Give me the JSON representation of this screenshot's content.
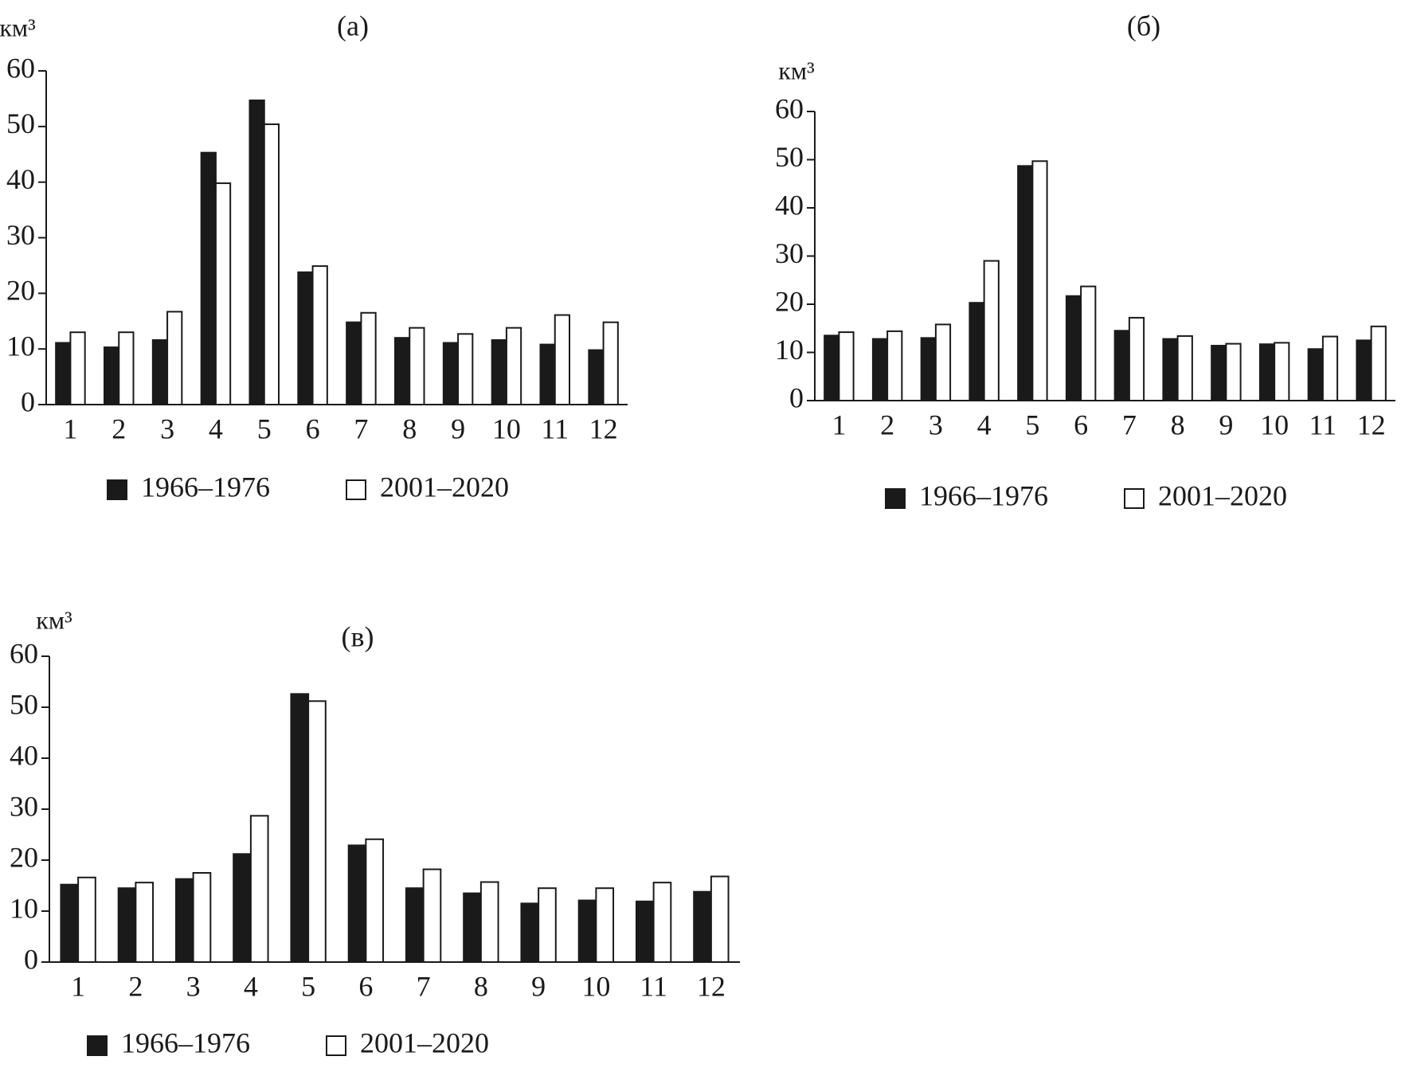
{
  "chart_data": [
    {
      "type": "bar",
      "title": "(а)",
      "y_label": "км³",
      "categories": [
        "1",
        "2",
        "3",
        "4",
        "5",
        "6",
        "7",
        "8",
        "9",
        "10",
        "11",
        "12"
      ],
      "series": [
        {
          "name": "1966–1976",
          "color": "#1a1a1a",
          "values": [
            11.1,
            10.3,
            11.6,
            45.3,
            54.7,
            23.8,
            14.8,
            12.0,
            11.1,
            11.6,
            10.8,
            9.8
          ]
        },
        {
          "name": "2001–2020",
          "color": "#ffffff",
          "values": [
            13.0,
            13.0,
            16.7,
            39.8,
            50.4,
            24.9,
            16.5,
            13.8,
            12.7,
            13.8,
            16.1,
            14.8
          ]
        }
      ],
      "ylim": [
        0,
        60
      ],
      "yticks": [
        0,
        10,
        20,
        30,
        40,
        50,
        60
      ]
    },
    {
      "type": "bar",
      "title": "(б)",
      "y_label": "км³",
      "categories": [
        "1",
        "2",
        "3",
        "4",
        "5",
        "6",
        "7",
        "8",
        "9",
        "10",
        "11",
        "12"
      ],
      "series": [
        {
          "name": "1966–1976",
          "color": "#1a1a1a",
          "values": [
            13.5,
            12.8,
            13.0,
            20.3,
            48.7,
            21.7,
            14.5,
            12.8,
            11.4,
            11.7,
            10.7,
            12.5
          ]
        },
        {
          "name": "2001–2020",
          "color": "#ffffff",
          "values": [
            14.2,
            14.4,
            15.8,
            29.0,
            49.7,
            23.7,
            17.2,
            13.4,
            11.8,
            12.0,
            13.3,
            15.4
          ]
        }
      ],
      "ylim": [
        0,
        60
      ],
      "yticks": [
        0,
        10,
        20,
        30,
        40,
        50,
        60
      ]
    },
    {
      "type": "bar",
      "title": "(в)",
      "y_label": "км³",
      "categories": [
        "1",
        "2",
        "3",
        "4",
        "5",
        "6",
        "7",
        "8",
        "9",
        "10",
        "11",
        "12"
      ],
      "series": [
        {
          "name": "1966–1976",
          "color": "#1a1a1a",
          "values": [
            15.2,
            14.5,
            16.3,
            21.2,
            52.6,
            22.9,
            14.5,
            13.5,
            11.5,
            12.1,
            11.9,
            13.8
          ]
        },
        {
          "name": "2001–2020",
          "color": "#ffffff",
          "values": [
            16.6,
            15.6,
            17.5,
            28.7,
            51.2,
            24.1,
            18.2,
            15.7,
            14.5,
            14.5,
            15.6,
            16.8
          ]
        }
      ],
      "ylim": [
        0,
        60
      ],
      "yticks": [
        0,
        10,
        20,
        30,
        40,
        50,
        60
      ]
    }
  ]
}
